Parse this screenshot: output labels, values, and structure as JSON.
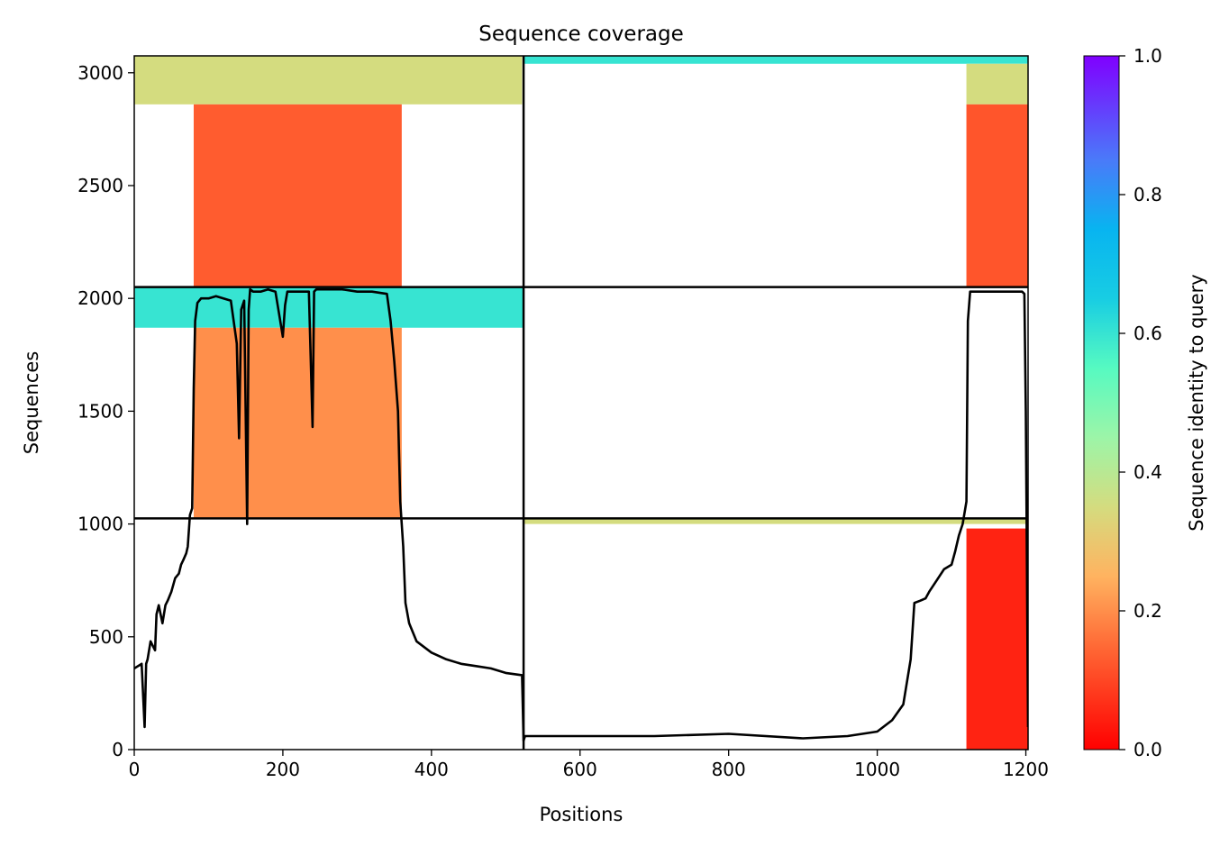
{
  "chart_data": {
    "type": "heatmap",
    "title": "Sequence coverage",
    "xlabel": "Positions",
    "ylabel": "Sequences",
    "xlim": [
      0,
      1203
    ],
    "ylim": [
      0,
      3075
    ],
    "x_ticks": [
      "0",
      "200",
      "400",
      "600",
      "800",
      "1000",
      "1200"
    ],
    "x_tick_values": [
      0,
      200,
      400,
      600,
      800,
      1000,
      1200
    ],
    "y_ticks": [
      "0",
      "500",
      "1000",
      "1500",
      "2000",
      "2500",
      "3000"
    ],
    "y_tick_values": [
      0,
      500,
      1000,
      1500,
      2000,
      2500,
      3000
    ],
    "colorbar": {
      "label": "Sequence identity to query",
      "range": [
        0.0,
        1.0
      ],
      "ticks": [
        "0.0",
        "0.2",
        "0.4",
        "0.6",
        "0.8",
        "1.0"
      ],
      "tick_values": [
        0.0,
        0.2,
        0.4,
        0.6,
        0.8,
        1.0
      ],
      "colormap": "rainbow_r"
    },
    "chain_boundaries": {
      "positions": [
        524
      ],
      "sequences": [
        1025,
        2050
      ]
    },
    "coverage_blocks": [
      {
        "x": [
          0,
          522
        ],
        "y": [
          2860,
          3075
        ],
        "identity": 0.35
      },
      {
        "x": [
          80,
          360
        ],
        "y": [
          2050,
          2860
        ],
        "identity": 0.13
      },
      {
        "x": [
          0,
          524
        ],
        "y": [
          1870,
          2050
        ],
        "identity": 0.6
      },
      {
        "x": [
          80,
          360
        ],
        "y": [
          1025,
          1870
        ],
        "identity": 0.2
      },
      {
        "x": [
          524,
          1203
        ],
        "y": [
          3040,
          3075
        ],
        "identity": 0.6
      },
      {
        "x": [
          1120,
          1203
        ],
        "y": [
          2860,
          3040
        ],
        "identity": 0.35
      },
      {
        "x": [
          1120,
          1203
        ],
        "y": [
          2050,
          2860
        ],
        "identity": 0.12
      },
      {
        "x": [
          524,
          1203
        ],
        "y": [
          1000,
          1025
        ],
        "identity": 0.35
      },
      {
        "x": [
          1120,
          1203
        ],
        "y": [
          0,
          980
        ],
        "identity": 0.05
      }
    ],
    "series": [
      {
        "x": [
          0,
          10,
          14,
          16,
          18,
          22,
          28,
          30,
          33,
          38,
          42,
          45,
          50,
          55,
          60,
          63,
          66,
          70,
          72,
          75,
          78,
          80,
          82,
          85,
          90,
          100,
          110,
          120,
          130,
          138,
          141,
          144,
          148,
          152,
          154,
          156,
          160,
          170,
          180,
          190,
          200,
          203,
          206,
          210,
          220,
          235,
          240,
          242,
          245,
          250,
          260,
          280,
          300,
          320,
          340,
          345,
          350,
          355,
          358,
          362,
          365,
          370,
          380,
          400,
          420,
          440,
          460,
          480,
          500,
          522,
          524,
          526,
          560,
          600,
          640,
          700,
          800,
          900,
          960,
          1000,
          1020,
          1035,
          1045,
          1050,
          1058,
          1065,
          1070,
          1080,
          1090,
          1100,
          1105,
          1110,
          1115,
          1120,
          1122,
          1125,
          1150,
          1190,
          1195,
          1198,
          1200,
          1203
        ],
        "values": [
          360,
          380,
          100,
          380,
          400,
          480,
          440,
          600,
          640,
          560,
          640,
          660,
          700,
          760,
          780,
          820,
          840,
          870,
          900,
          1040,
          1070,
          1600,
          1900,
          1980,
          2000,
          2000,
          2010,
          2000,
          1990,
          1800,
          1380,
          1950,
          1990,
          1000,
          1950,
          2040,
          2030,
          2030,
          2040,
          2030,
          1830,
          1970,
          2030,
          2030,
          2030,
          2030,
          1430,
          2030,
          2040,
          2040,
          2040,
          2040,
          2030,
          2030,
          2020,
          1900,
          1720,
          1500,
          1100,
          900,
          650,
          560,
          480,
          430,
          400,
          380,
          370,
          360,
          340,
          330,
          40,
          60,
          60,
          60,
          60,
          60,
          70,
          50,
          60,
          80,
          130,
          200,
          400,
          650,
          660,
          670,
          700,
          750,
          800,
          820,
          880,
          950,
          1000,
          1100,
          1900,
          2030,
          2030,
          2030,
          2030,
          2020,
          1500,
          100
        ]
      }
    ]
  }
}
